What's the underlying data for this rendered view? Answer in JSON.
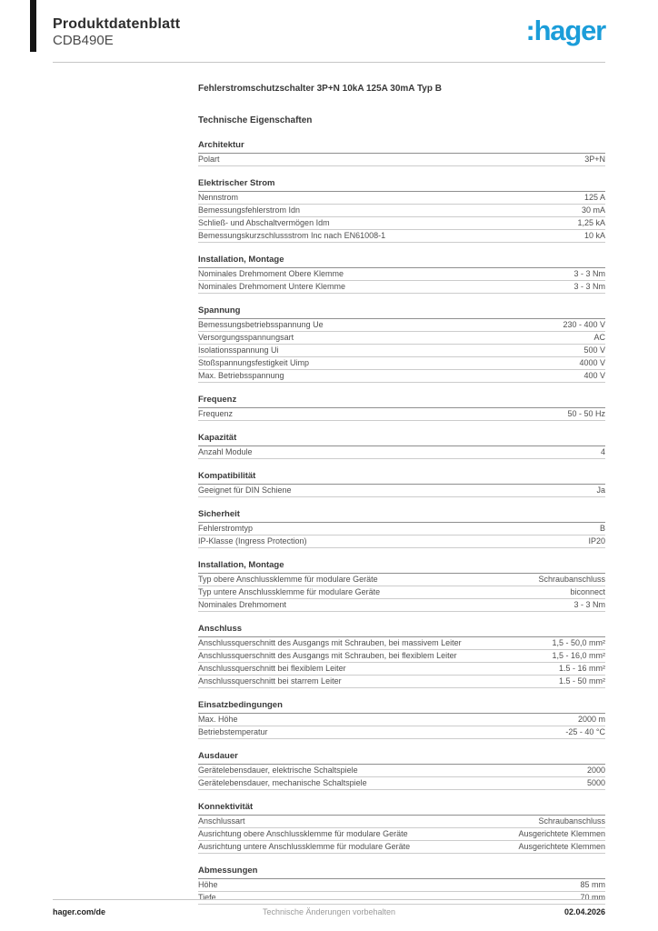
{
  "header": {
    "doc_type": "Produktdatenblatt",
    "product_ref": "CDB490E",
    "logo_text": ":hager",
    "brand_color": "#1b9dd9"
  },
  "product_title": "Fehlerstromschutzschalter 3P+N 10kA 125A 30mA Typ B",
  "table_heading": "Technische Eigenschaften",
  "sections": [
    {
      "title": "Architektur",
      "rows": [
        {
          "label": "Polart",
          "value": "3P+N"
        }
      ]
    },
    {
      "title": "Elektrischer Strom",
      "rows": [
        {
          "label": "Nennstrom",
          "value": "125 A"
        },
        {
          "label": "Bemessungsfehlerstrom Idn",
          "value": "30 mA"
        },
        {
          "label": "Schließ- und Abschaltvermögen Idm",
          "value": "1,25 kA"
        },
        {
          "label": "Bemessungskurzschlussstrom Inc nach EN61008-1",
          "value": "10 kA"
        }
      ]
    },
    {
      "title": "Installation, Montage",
      "rows": [
        {
          "label": "Nominales Drehmoment Obere Klemme",
          "value": "3 - 3 Nm"
        },
        {
          "label": "Nominales Drehmoment Untere Klemme",
          "value": "3 - 3 Nm"
        }
      ]
    },
    {
      "title": "Spannung",
      "rows": [
        {
          "label": "Bemessungsbetriebsspannung Ue",
          "value": "230 - 400 V"
        },
        {
          "label": "Versorgungsspannungsart",
          "value": "AC"
        },
        {
          "label": "Isolationsspannung Ui",
          "value": "500 V"
        },
        {
          "label": "Stoßspannungsfestigkeit Uimp",
          "value": "4000 V"
        },
        {
          "label": "Max. Betriebsspannung",
          "value": "400 V"
        }
      ]
    },
    {
      "title": "Frequenz",
      "rows": [
        {
          "label": "Frequenz",
          "value": "50 - 50 Hz"
        }
      ]
    },
    {
      "title": "Kapazität",
      "rows": [
        {
          "label": "Anzahl Module",
          "value": "4"
        }
      ]
    },
    {
      "title": "Kompatibilität",
      "rows": [
        {
          "label": "Geeignet für DIN Schiene",
          "value": "Ja"
        }
      ]
    },
    {
      "title": "Sicherheit",
      "rows": [
        {
          "label": "Fehlerstromtyp",
          "value": "B"
        },
        {
          "label": "IP-Klasse (Ingress Protection)",
          "value": "IP20"
        }
      ]
    },
    {
      "title": "Installation, Montage",
      "rows": [
        {
          "label": "Typ obere Anschlussklemme für modulare Geräte",
          "value": "Schraubanschluss"
        },
        {
          "label": "Typ untere Anschlussklemme für modulare Geräte",
          "value": "biconnect"
        },
        {
          "label": "Nominales Drehmoment",
          "value": "3 - 3 Nm"
        }
      ]
    },
    {
      "title": "Anschluss",
      "rows": [
        {
          "label": "Anschlussquerschnitt des Ausgangs mit Schrauben, bei massivem Leiter",
          "value": "1,5 - 50,0 mm²"
        },
        {
          "label": "Anschlussquerschnitt des Ausgangs mit Schrauben, bei flexiblem Leiter",
          "value": "1,5 - 16,0 mm²"
        },
        {
          "label": "Anschlussquerschnitt bei flexiblem Leiter",
          "value": "1.5 - 16 mm²"
        },
        {
          "label": "Anschlussquerschnitt bei starrem Leiter",
          "value": "1.5 - 50 mm²"
        }
      ]
    },
    {
      "title": "Einsatzbedingungen",
      "rows": [
        {
          "label": "Max. Höhe",
          "value": "2000 m"
        },
        {
          "label": "Betriebstemperatur",
          "value": "-25 - 40 °C"
        }
      ]
    },
    {
      "title": "Ausdauer",
      "rows": [
        {
          "label": "Gerätelebensdauer, elektrische Schaltspiele",
          "value": "2000"
        },
        {
          "label": "Gerätelebensdauer, mechanische Schaltspiele",
          "value": "5000"
        }
      ]
    },
    {
      "title": "Konnektivität",
      "rows": [
        {
          "label": "Anschlussart",
          "value": "Schraubanschluss"
        },
        {
          "label": "Ausrichtung obere Anschlussklemme für modulare Geräte",
          "value": "Ausgerichtete Klemmen"
        },
        {
          "label": "Ausrichtung untere Anschlussklemme für modulare Geräte",
          "value": "Ausgerichtete Klemmen"
        }
      ]
    },
    {
      "title": "Abmessungen",
      "rows": [
        {
          "label": "Höhe",
          "value": "85 mm"
        },
        {
          "label": "Tiefe",
          "value": "70 mm"
        }
      ]
    }
  ],
  "footer": {
    "website": "hager.com/de",
    "notice": "Technische Änderungen vorbehalten",
    "date": "02.04.2026"
  }
}
